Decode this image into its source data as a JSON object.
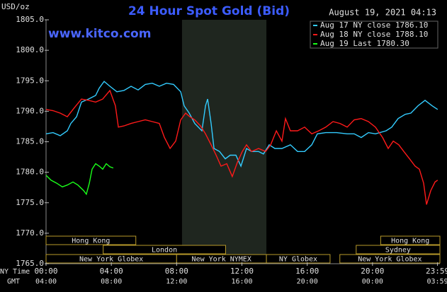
{
  "chart_data": {
    "type": "line",
    "title": "24 Hour Spot Gold (Bid)",
    "y_label": "USD/oz",
    "date": "August 19, 2021 04:13",
    "site": "www.kitco.com",
    "x_label": "NY Time",
    "x2_label": "GMT",
    "xlim": [
      0,
      24
    ],
    "ylim": [
      1765,
      1805
    ],
    "yticks": [
      {
        "value": 1805,
        "label": "1805.0"
      },
      {
        "value": 1800,
        "label": "1800.0"
      },
      {
        "value": 1795,
        "label": "1795.0"
      },
      {
        "value": 1790,
        "label": "1790.0"
      },
      {
        "value": 1785,
        "label": "1785.0"
      },
      {
        "value": 1780,
        "label": "1780.0"
      },
      {
        "value": 1775,
        "label": "1775.0"
      },
      {
        "value": 1770,
        "label": "1770.0"
      },
      {
        "value": 1765,
        "label": "1765.0"
      }
    ],
    "xticks": [
      {
        "value": 0,
        "label": "00:00"
      },
      {
        "value": 4,
        "label": "04:00"
      },
      {
        "value": 8,
        "label": "08:00"
      },
      {
        "value": 12,
        "label": "12:00"
      },
      {
        "value": 16,
        "label": "16:00"
      },
      {
        "value": 20,
        "label": "20:00"
      },
      {
        "value": 23.98,
        "label": "23:59"
      }
    ],
    "x2ticks": [
      {
        "value": 0,
        "label": "04:00"
      },
      {
        "value": 4,
        "label": "08:00"
      },
      {
        "value": 8,
        "label": "12:00"
      },
      {
        "value": 12,
        "label": "16:00"
      },
      {
        "value": 16,
        "label": "20:00"
      },
      {
        "value": 20,
        "label": "00:00"
      },
      {
        "value": 23.98,
        "label": "03:59"
      }
    ],
    "legend": "top-right",
    "nymex_open": [
      8.33,
      13.5
    ],
    "sessions": [
      {
        "label": "Hong Kong",
        "start": 0,
        "end": 5.5
      },
      {
        "label": "London",
        "start": 3.5,
        "end": 11.0
      },
      {
        "label": "New York Globex",
        "start": 0,
        "end": 8.0
      },
      {
        "label": "New York NYMEX",
        "start": 8.0,
        "end": 13.5
      },
      {
        "label": "NY Globex",
        "start": 13.5,
        "end": 17.4
      },
      {
        "label": "Sydney",
        "start": 19.0,
        "end": 24
      },
      {
        "label": "Hong Kong",
        "start": 20.5,
        "end": 24
      },
      {
        "label": "New York Globex",
        "start": 18.0,
        "end": 24
      }
    ],
    "series": [
      {
        "name": "Aug 17 NY close 1786.10",
        "color": "#33ccff",
        "x": [
          0.0,
          0.43,
          0.87,
          1.3,
          1.52,
          1.87,
          2.17,
          2.6,
          3.04,
          3.26,
          3.56,
          3.91,
          4.34,
          4.77,
          5.21,
          5.64,
          6.08,
          6.51,
          6.94,
          7.38,
          7.81,
          8.25,
          8.46,
          8.77,
          9.11,
          9.55,
          9.77,
          9.9,
          10.11,
          10.29,
          10.63,
          10.98,
          11.28,
          11.63,
          11.94,
          12.28,
          12.59,
          13.02,
          13.32,
          13.67,
          14.02,
          14.45,
          14.97,
          15.41,
          15.84,
          16.28,
          16.62,
          17.14,
          17.8,
          18.45,
          18.88,
          19.31,
          19.75,
          20.18,
          20.83,
          21.18,
          21.57,
          22.01,
          22.35,
          22.79,
          23.22,
          23.65,
          23.99
        ],
        "values": [
          1786.3,
          1786.5,
          1786.0,
          1786.8,
          1788.0,
          1789.1,
          1791.5,
          1792.0,
          1792.6,
          1793.8,
          1794.9,
          1794.1,
          1793.2,
          1793.4,
          1794.1,
          1793.5,
          1794.4,
          1794.6,
          1794.1,
          1794.6,
          1794.4,
          1793.2,
          1790.9,
          1789.7,
          1788.0,
          1786.8,
          1790.9,
          1792.0,
          1788.0,
          1783.9,
          1783.4,
          1782.2,
          1782.8,
          1782.8,
          1781.0,
          1783.9,
          1783.4,
          1783.4,
          1783.0,
          1784.5,
          1783.9,
          1783.9,
          1784.5,
          1783.4,
          1783.4,
          1784.5,
          1786.3,
          1786.5,
          1786.5,
          1786.3,
          1786.3,
          1785.7,
          1786.5,
          1786.3,
          1786.8,
          1787.4,
          1788.8,
          1789.5,
          1789.7,
          1790.9,
          1791.8,
          1790.9,
          1790.3
        ]
      },
      {
        "name": "Aug 18 NY close 1788.10",
        "color": "#ff1a1a",
        "x": [
          0.0,
          0.43,
          0.87,
          1.3,
          1.74,
          2.17,
          2.6,
          3.04,
          3.47,
          3.91,
          4.25,
          4.43,
          4.77,
          5.21,
          5.64,
          6.08,
          6.51,
          6.94,
          7.25,
          7.6,
          7.94,
          8.25,
          8.55,
          8.81,
          9.11,
          9.46,
          9.77,
          10.11,
          10.42,
          10.72,
          11.07,
          11.41,
          11.72,
          12.02,
          12.28,
          12.59,
          13.02,
          13.45,
          13.76,
          14.11,
          14.45,
          14.67,
          14.97,
          15.41,
          15.84,
          16.28,
          16.71,
          17.14,
          17.58,
          18.01,
          18.45,
          18.88,
          19.31,
          19.75,
          20.18,
          20.62,
          20.96,
          21.27,
          21.61,
          21.92,
          22.27,
          22.61,
          22.87,
          23.13,
          23.31,
          23.57,
          23.83,
          23.99
        ],
        "values": [
          1790.3,
          1790.1,
          1789.7,
          1789.1,
          1790.6,
          1792.0,
          1791.8,
          1791.5,
          1792.0,
          1793.4,
          1790.9,
          1787.4,
          1787.6,
          1788.0,
          1788.3,
          1788.6,
          1788.3,
          1788.0,
          1785.7,
          1783.9,
          1785.1,
          1788.6,
          1789.7,
          1789.1,
          1788.6,
          1787.6,
          1786.3,
          1784.5,
          1782.8,
          1781.0,
          1781.4,
          1779.3,
          1781.6,
          1783.4,
          1784.5,
          1783.4,
          1783.9,
          1783.4,
          1784.5,
          1786.8,
          1785.1,
          1788.8,
          1786.8,
          1786.8,
          1787.4,
          1786.3,
          1786.8,
          1787.4,
          1788.3,
          1788.0,
          1787.4,
          1788.6,
          1788.8,
          1788.3,
          1787.4,
          1785.7,
          1783.9,
          1785.1,
          1784.5,
          1783.4,
          1782.2,
          1781.0,
          1780.5,
          1778.2,
          1774.7,
          1777.0,
          1778.4,
          1778.7
        ]
      },
      {
        "name": "Aug 19 Last 1780.30",
        "color": "#1aff1a",
        "x": [
          0.0,
          0.3,
          0.65,
          1.0,
          1.3,
          1.65,
          1.95,
          2.3,
          2.47,
          2.65,
          2.82,
          3.04,
          3.26,
          3.47,
          3.69,
          3.91,
          4.12
        ],
        "values": [
          1779.5,
          1778.7,
          1778.2,
          1777.6,
          1777.9,
          1778.4,
          1777.9,
          1777.0,
          1776.4,
          1778.2,
          1780.5,
          1781.4,
          1781.0,
          1780.5,
          1781.4,
          1780.9,
          1780.7
        ]
      }
    ]
  }
}
